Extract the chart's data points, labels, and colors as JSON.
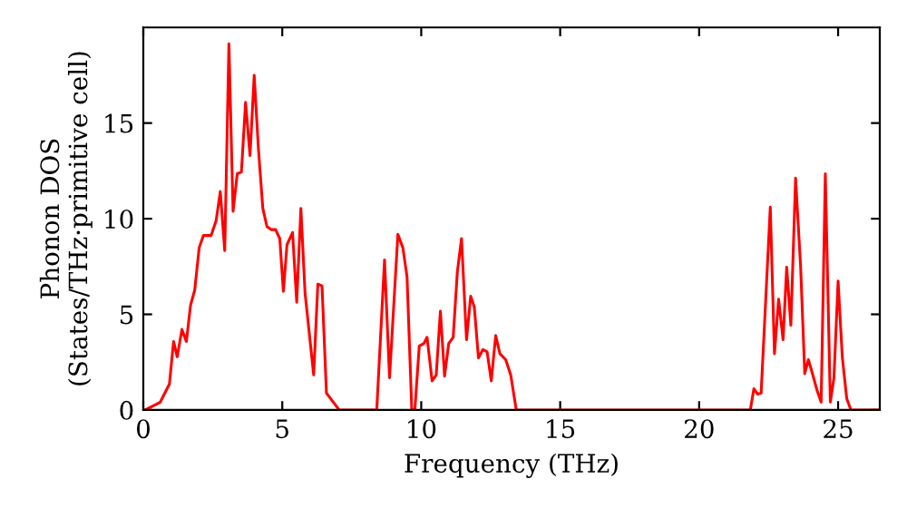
{
  "chart_data": {
    "type": "line",
    "xlabel": "Frequency (THz)",
    "ylabel": "Phonon DOS\n(States/THz·primitive cell)",
    "xlim": [
      0,
      26.5
    ],
    "ylim": [
      0,
      20
    ],
    "xticks": [
      0,
      5,
      10,
      15,
      20,
      25
    ],
    "yticks": [
      0,
      5,
      10,
      15
    ],
    "grid": false,
    "legend": false,
    "marker": "none",
    "line_style": "solid",
    "series": [
      {
        "color": "#ff0000",
        "x": [
          0,
          0.07,
          0.61,
          0.94,
          1.09,
          1.22,
          1.39,
          1.55,
          1.7,
          1.85,
          2.01,
          2.16,
          2.44,
          2.62,
          2.77,
          2.93,
          3.08,
          3.23,
          3.38,
          3.53,
          3.68,
          3.84,
          3.99,
          4.14,
          4.3,
          4.45,
          4.6,
          4.76,
          4.91,
          5.04,
          5.17,
          5.37,
          5.52,
          5.67,
          5.82,
          6.13,
          6.28,
          6.43,
          6.59,
          7.05,
          8.4,
          8.68,
          8.86,
          9.16,
          9.34,
          9.49,
          9.66,
          9.77,
          9.93,
          10.1,
          10.21,
          10.39,
          10.54,
          10.69,
          10.84,
          10.99,
          11.15,
          11.3,
          11.45,
          11.63,
          11.78,
          11.91,
          12.06,
          12.22,
          12.37,
          12.52,
          12.68,
          12.83,
          13.04,
          13.22,
          13.42,
          21.84,
          21.97,
          22.1,
          22.23,
          22.56,
          22.71,
          22.86,
          23.02,
          23.15,
          23.3,
          23.47,
          23.65,
          23.8,
          23.93,
          24.06,
          24.24,
          24.39,
          24.54,
          24.72,
          24.85,
          25.0,
          25.15,
          25.31,
          25.46,
          26.5
        ],
        "values": [
          0,
          0,
          0.41,
          1.36,
          3.58,
          2.78,
          4.21,
          3.58,
          5.48,
          6.27,
          8.48,
          9.12,
          9.12,
          9.9,
          11.42,
          8.33,
          19.15,
          10.38,
          12.35,
          12.44,
          16.08,
          13.3,
          17.5,
          13.7,
          10.54,
          9.59,
          9.43,
          9.43,
          8.96,
          6.2,
          8.64,
          9.28,
          5.63,
          10.54,
          6.11,
          1.83,
          6.58,
          6.49,
          0.88,
          0,
          0,
          7.85,
          1.68,
          9.18,
          8.48,
          6.96,
          0,
          0,
          3.35,
          3.48,
          3.8,
          1.52,
          1.83,
          5.16,
          1.77,
          3.48,
          3.8,
          7.22,
          8.96,
          3.67,
          5.95,
          5.38,
          2.72,
          3.16,
          3.04,
          1.52,
          3.89,
          2.94,
          2.63,
          1.83,
          0,
          0,
          1.11,
          0.83,
          0.88,
          10.61,
          2.94,
          5.79,
          3.67,
          7.47,
          4.43,
          12.13,
          7.53,
          1.9,
          2.63,
          1.99,
          1.04,
          0.41,
          12.35,
          0.41,
          1.68,
          6.74,
          2.78,
          0.6,
          0,
          0
        ]
      }
    ]
  }
}
